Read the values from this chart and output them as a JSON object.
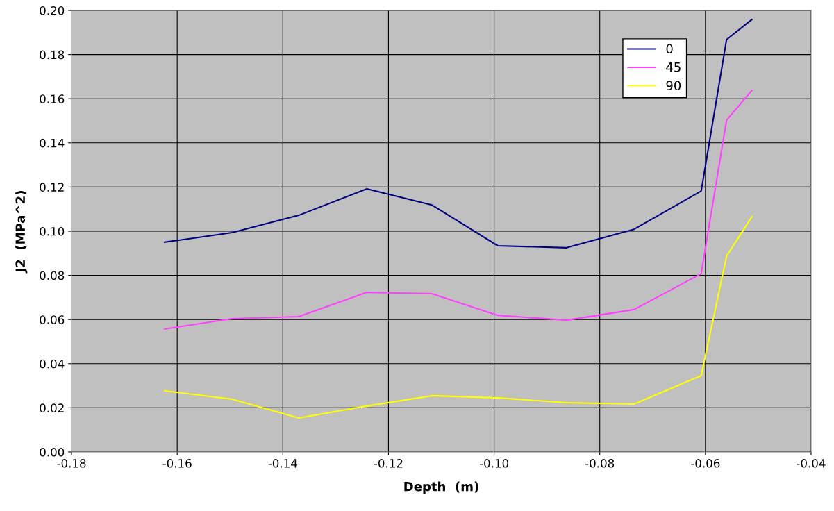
{
  "chart_data": {
    "type": "line",
    "xlabel": "Depth  (m)",
    "ylabel": "J2  (MPa^2)",
    "x": [
      -0.1624,
      -0.1496,
      -0.137,
      -0.1241,
      -0.1118,
      -0.0993,
      -0.0863,
      -0.0735,
      -0.0608,
      -0.056,
      -0.0512
    ],
    "series": [
      {
        "name": "0",
        "color": "#000080",
        "values": [
          0.095,
          0.0994,
          0.1072,
          0.1192,
          0.1119,
          0.0934,
          0.0925,
          0.1009,
          0.1182,
          0.1868,
          0.1959
        ]
      },
      {
        "name": "45",
        "color": "#ff40ff",
        "values": [
          0.0557,
          0.0604,
          0.0613,
          0.0723,
          0.0717,
          0.0619,
          0.0597,
          0.0645,
          0.0808,
          0.1503,
          0.1638
        ]
      },
      {
        "name": "90",
        "color": "#ffff00",
        "values": [
          0.0277,
          0.0239,
          0.0154,
          0.0208,
          0.0255,
          0.0245,
          0.0223,
          0.0217,
          0.0346,
          0.0887,
          0.1066
        ]
      }
    ],
    "xlim": [
      -0.18,
      -0.04
    ],
    "xticks": [
      {
        "value": -0.18,
        "label": "-0.18"
      },
      {
        "value": -0.16,
        "label": "-0.16"
      },
      {
        "value": -0.14,
        "label": "-0.14"
      },
      {
        "value": -0.12,
        "label": "-0.12"
      },
      {
        "value": -0.1,
        "label": "-0.10"
      },
      {
        "value": -0.08,
        "label": "-0.08"
      },
      {
        "value": -0.06,
        "label": "-0.06"
      },
      {
        "value": -0.04,
        "label": "-0.04"
      }
    ],
    "ylim": [
      0,
      0.2
    ],
    "yticks": [
      {
        "value": 0,
        "label": "0.00"
      },
      {
        "value": 0.02,
        "label": "0.02"
      },
      {
        "value": 0.04,
        "label": "0.04"
      },
      {
        "value": 0.06,
        "label": "0.06"
      },
      {
        "value": 0.08,
        "label": "0.08"
      },
      {
        "value": 0.1,
        "label": "0.10"
      },
      {
        "value": 0.12,
        "label": "0.12"
      },
      {
        "value": 0.14,
        "label": "0.14"
      },
      {
        "value": 0.16,
        "label": "0.16"
      },
      {
        "value": 0.18,
        "label": "0.18"
      },
      {
        "value": 0.2,
        "label": "0.20"
      }
    ],
    "grid": true,
    "legend": "top right",
    "marker": "none",
    "line_style": "solid"
  }
}
